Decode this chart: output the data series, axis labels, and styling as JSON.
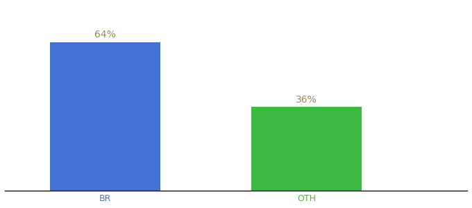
{
  "categories": [
    "BR",
    "OTH"
  ],
  "values": [
    64,
    36
  ],
  "bar_colors": [
    "#4472d4",
    "#3cb943"
  ],
  "label_color": "#a08858",
  "label_fontsize": 10,
  "tick_label_fontsize": 9,
  "tick_label_colors": [
    "#4472d4",
    "#3cb943"
  ],
  "background_color": "#ffffff",
  "ylim": [
    0,
    80
  ],
  "bar_width": 0.55,
  "annotations": [
    "64%",
    "36%"
  ],
  "xlim": [
    -0.5,
    1.8
  ]
}
